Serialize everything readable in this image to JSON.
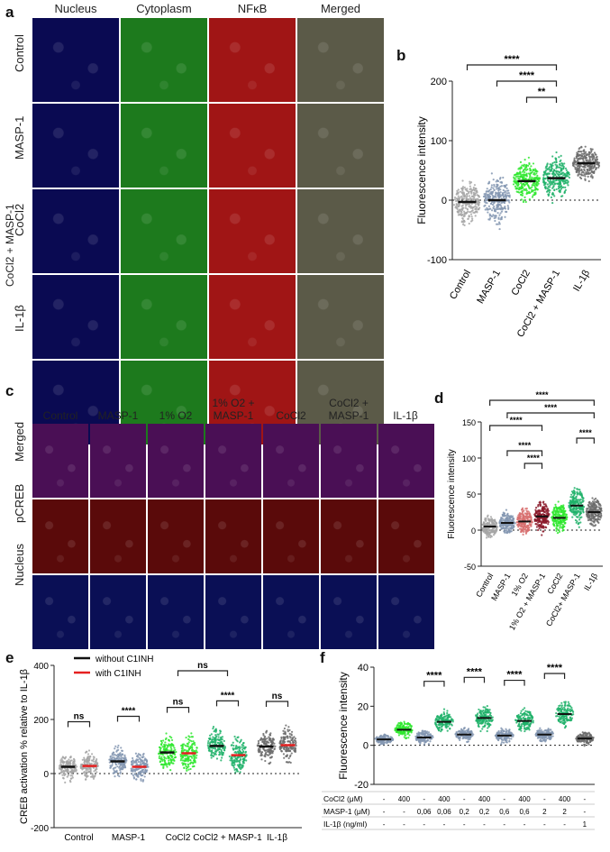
{
  "panels": {
    "a": {
      "label": "a",
      "columns": [
        "Nucleus",
        "Cytoplasm",
        "NFκB",
        "Merged"
      ],
      "rows": [
        "Control",
        "MASP-1",
        "CoCl2",
        "CoCl2 + MASP-1",
        "IL-1β"
      ],
      "colors": {
        "Nucleus": "#0a0a52",
        "Cytoplasm": "#1d7a1d",
        "NFκB": "#a01515",
        "Merged": "#5b5a48"
      }
    },
    "b": {
      "label": "b"
    },
    "c": {
      "label": "c",
      "columns": [
        "Control",
        "MASP-1",
        "1% O2",
        "1% O2 + MASP-1",
        "CoCl2",
        "CoCl2 + MASP-1",
        "IL-1β"
      ],
      "rows": [
        "Merged",
        "pCREB",
        "Nucleus"
      ],
      "colors": {
        "Merged": "#4a0f55",
        "pCREB": "#5a0a0a",
        "Nucleus": "#0a0f55"
      }
    },
    "d": {
      "label": "d"
    },
    "e": {
      "label": "e"
    },
    "f": {
      "label": "f"
    }
  },
  "chart_data": [
    {
      "id": "b",
      "type": "scatter",
      "ylabel": "Fluorescence intensity",
      "ylim": [
        -100,
        200
      ],
      "yticks": [
        -100,
        0,
        100,
        200
      ],
      "categories": [
        "Control",
        "MASP-1",
        "CoCl2",
        "CoCl2 + MASP-1",
        "IL-1β"
      ],
      "medians": [
        -3,
        0,
        32,
        37,
        62
      ],
      "spread": [
        28,
        35,
        28,
        30,
        22
      ],
      "colors": [
        "#a6a6a6",
        "#8496b2",
        "#2ee82e",
        "#20b26a",
        "#6b6b6b"
      ],
      "significance": [
        {
          "from": 0,
          "to": 3,
          "label": "****"
        },
        {
          "from": 1,
          "to": 3,
          "label": "****"
        },
        {
          "from": 2,
          "to": 3,
          "label": "**"
        }
      ]
    },
    {
      "id": "d",
      "type": "scatter",
      "ylabel": "Fluorescence intensity",
      "ylim": [
        -50,
        150
      ],
      "yticks": [
        -50,
        0,
        50,
        100,
        150
      ],
      "categories": [
        "Control",
        "MASP-1",
        "1% O2",
        "1% O2 + MASP-1",
        "CoCl2",
        "CoCl2+ MASP-1",
        "IL-1β"
      ],
      "medians": [
        5,
        10,
        12,
        19,
        17,
        34,
        25
      ],
      "spread": [
        12,
        12,
        14,
        17,
        17,
        20,
        16
      ],
      "colors": [
        "#a6a6a6",
        "#8496b2",
        "#d87070",
        "#8b1a2a",
        "#2ee82e",
        "#20b26a",
        "#6b6b6b"
      ],
      "significance": [
        {
          "from": 0,
          "to": 6,
          "label": "****"
        },
        {
          "from": 1,
          "to": 6,
          "label": "****"
        },
        {
          "from": 0,
          "to": 3,
          "label": "****"
        },
        {
          "from": 5,
          "to": 6,
          "label": "****"
        },
        {
          "from": 1,
          "to": 3,
          "label": "****"
        },
        {
          "from": 2,
          "to": 3,
          "label": "****"
        }
      ]
    },
    {
      "id": "e",
      "type": "scatter",
      "ylabel": "CREB activation % relative to IL-1β",
      "ylim": [
        -200,
        400
      ],
      "yticks": [
        -200,
        0,
        200,
        400
      ],
      "categories": [
        "Control",
        "MASP-1",
        "CoCl2",
        "CoCl2 + MASP-1",
        "IL-1β"
      ],
      "series": [
        {
          "name": "without C1INH",
          "color": "#111111",
          "medians": [
            25,
            45,
            78,
            102,
            100
          ]
        },
        {
          "name": "with C1INH",
          "color": "#e52020",
          "medians": [
            28,
            25,
            75,
            68,
            105
          ]
        }
      ],
      "colors": [
        "#a6a6a6",
        "#8496b2",
        "#2ee82e",
        "#20b26a",
        "#6b6b6b"
      ],
      "spread": [
        40,
        45,
        55,
        55,
        50
      ],
      "significance": [
        {
          "cat": 0,
          "label": "ns"
        },
        {
          "cat": 1,
          "label": "****"
        },
        {
          "cat": 2,
          "label": "ns"
        },
        {
          "cat": 3,
          "label": "****"
        },
        {
          "cat": 4,
          "label": "ns"
        }
      ],
      "bracket": {
        "from": 2,
        "to": 3,
        "label": "ns"
      }
    },
    {
      "id": "f",
      "type": "scatter",
      "ylabel": "Fluorescence intensity",
      "ylim": [
        -20,
        40
      ],
      "yticks": [
        -20,
        0,
        20,
        40
      ],
      "medians": [
        3,
        8,
        4,
        12,
        5.5,
        14,
        5,
        12.5,
        5.5,
        16,
        3.5
      ],
      "spread": [
        2,
        3.5,
        3,
        4.5,
        3,
        5,
        3,
        5,
        3,
        5,
        2.5
      ],
      "colors": [
        "#8496b2",
        "#2ee82e",
        "#8496b2",
        "#20b26a",
        "#8496b2",
        "#20b26a",
        "#8496b2",
        "#20b26a",
        "#8496b2",
        "#20b26a",
        "#6b6b6b"
      ],
      "significance": [
        {
          "from": 2,
          "to": 3,
          "label": "****"
        },
        {
          "from": 4,
          "to": 5,
          "label": "****"
        },
        {
          "from": 6,
          "to": 7,
          "label": "****"
        },
        {
          "from": 8,
          "to": 9,
          "label": "****"
        }
      ],
      "table": [
        {
          "label": "CoCl2 (μM)",
          "values": [
            "-",
            "400",
            "-",
            "400",
            "-",
            "400",
            "-",
            "400",
            "-",
            "400",
            "-"
          ]
        },
        {
          "label": "MASP-1 (μM)",
          "values": [
            "-",
            "-",
            "0,06",
            "0,06",
            "0,2",
            "0,2",
            "0,6",
            "0,6",
            "2",
            "2",
            "-"
          ]
        },
        {
          "label": "IL-1β (ng/ml)",
          "values": [
            "-",
            "-",
            "-",
            "-",
            "-",
            "-",
            "-",
            "-",
            "-",
            "-",
            "1"
          ]
        }
      ]
    }
  ]
}
